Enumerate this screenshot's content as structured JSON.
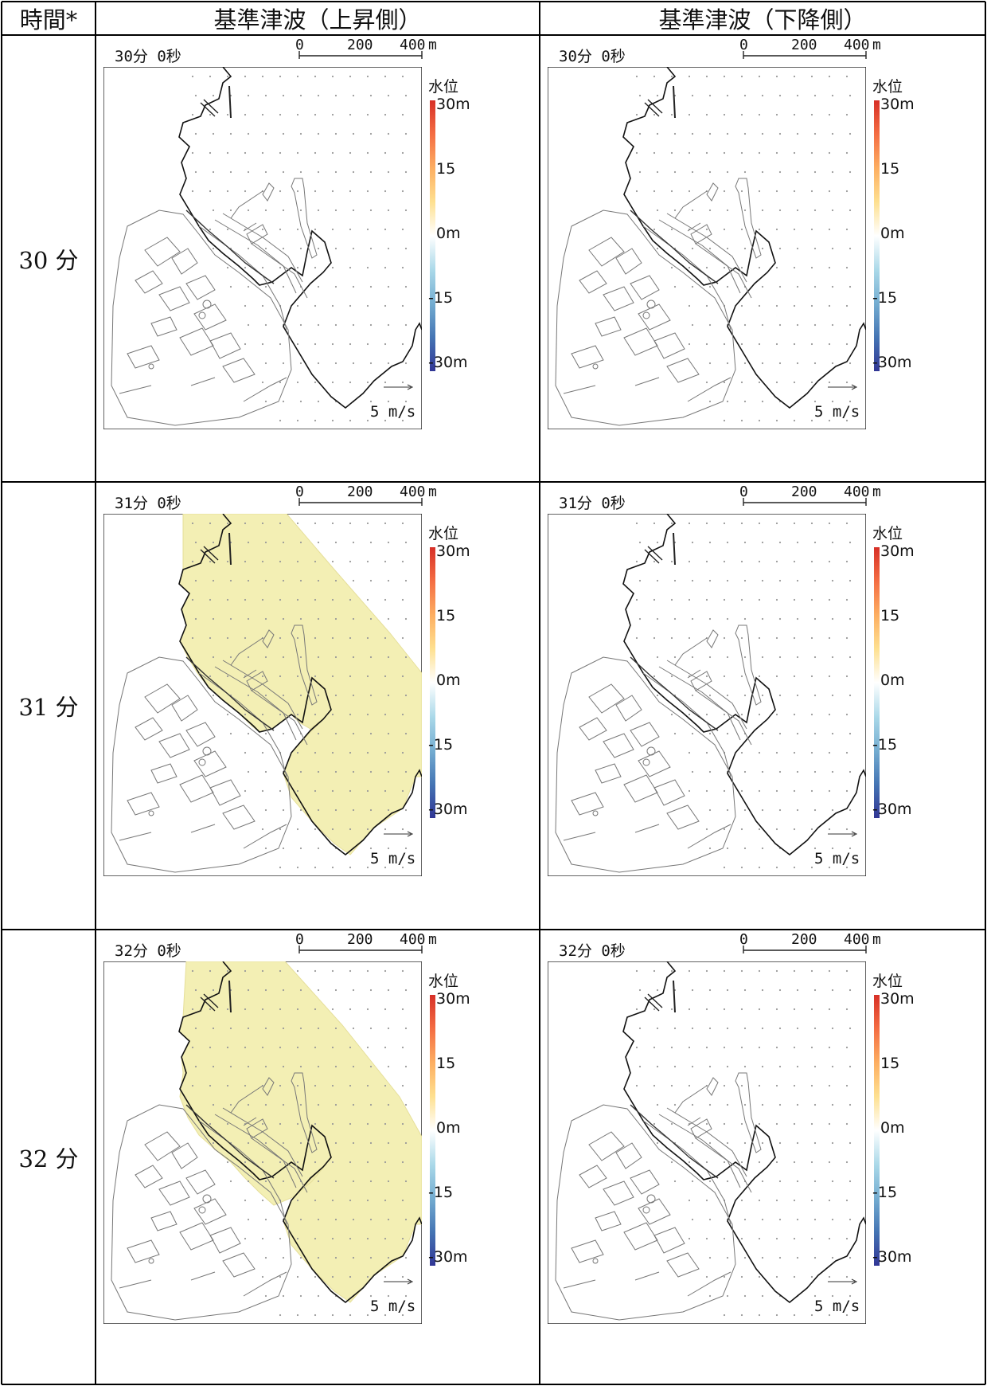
{
  "header": {
    "time_label": "時間*",
    "col_up_label": "基準津波（上昇側）",
    "col_down_label": "基準津波（下降側）"
  },
  "rows": [
    {
      "time_label": "30 分",
      "up_panel_time": "30分 0秒",
      "down_panel_time": "30分 0秒",
      "up_inundated": false
    },
    {
      "time_label": "31 分",
      "up_panel_time": "31分 0秒",
      "down_panel_time": "31分 0秒",
      "up_inundated": true
    },
    {
      "time_label": "32 分",
      "up_panel_time": "32分 0秒",
      "down_panel_time": "32分 0秒",
      "up_inundated": true
    }
  ],
  "scale_bar": {
    "tick0": "0",
    "tick1": "200",
    "tick2": "400",
    "unit": "m"
  },
  "legend": {
    "title": "水位",
    "ticks": [
      "30m",
      "15",
      "0m",
      "-15",
      "-30m"
    ],
    "colors": [
      "#d73027",
      "#f46d43",
      "#fdae61",
      "#fee090",
      "#ffffff",
      "#abd9e9",
      "#74add1",
      "#4575b4",
      "#313695"
    ]
  },
  "velocity_ref": {
    "label": "5 m/s"
  },
  "colors": {
    "inundation": "#f3efb4",
    "grid": "#000000",
    "coast": "#111111",
    "facility": "#777777",
    "dot": "#999999"
  }
}
